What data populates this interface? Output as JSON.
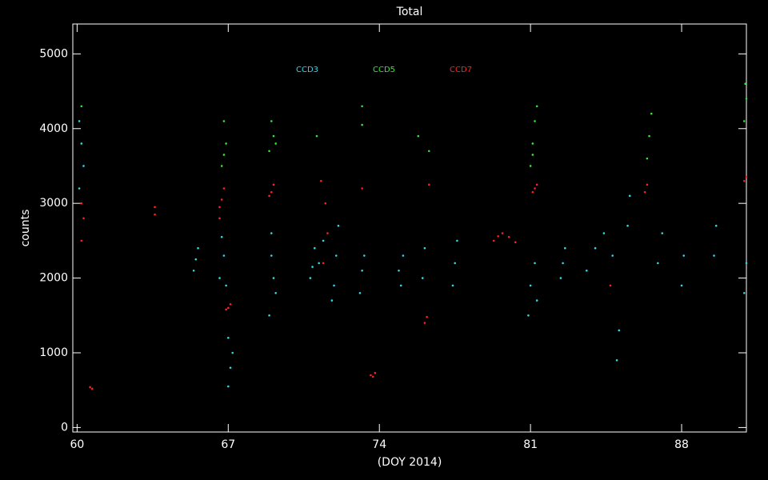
{
  "chart_data": {
    "type": "scatter",
    "title": "Total",
    "xlabel": "(DOY 2014)",
    "ylabel": "counts",
    "xlim": [
      59.8,
      91.0
    ],
    "ylim": [
      -60,
      5400
    ],
    "xticks": [
      60,
      67,
      74,
      81,
      88
    ],
    "yticks": [
      0,
      1000,
      2000,
      3000,
      4000,
      5000
    ],
    "series": [
      {
        "name": "CCD3",
        "color": "#33d6e6",
        "x": [
          60.1,
          60.2,
          60.1,
          60.3,
          65.4,
          65.6,
          65.5,
          66.6,
          66.8,
          66.7,
          66.9,
          67.0,
          67.1,
          67.0,
          67.2,
          68.9,
          69.1,
          69.0,
          69.2,
          69.0,
          70.8,
          71.0,
          71.2,
          71.4,
          70.9,
          71.8,
          72.0,
          72.1,
          71.9,
          73.1,
          73.3,
          73.2,
          75.0,
          75.1,
          74.9,
          76.0,
          76.1,
          77.4,
          77.6,
          77.5,
          80.9,
          81.0,
          81.2,
          81.3,
          82.4,
          82.6,
          82.5,
          83.6,
          84.0,
          84.4,
          84.8,
          85.0,
          85.1,
          85.5,
          85.6,
          86.9,
          87.1,
          88.0,
          88.1,
          89.5,
          89.6,
          90.9,
          91.0
        ],
        "values": [
          3200,
          3800,
          4100,
          3500,
          2100,
          2400,
          2250,
          2000,
          2300,
          2550,
          1900,
          1200,
          800,
          550,
          1000,
          1500,
          2000,
          2600,
          1800,
          2300,
          2000,
          2400,
          2200,
          2500,
          2150,
          1700,
          2300,
          2700,
          1900,
          1800,
          2300,
          2100,
          1900,
          2300,
          2100,
          2000,
          2400,
          1900,
          2500,
          2200,
          1500,
          1900,
          2200,
          1700,
          2000,
          2400,
          2200,
          2100,
          2400,
          2600,
          2300,
          900,
          1300,
          2700,
          3100,
          2200,
          2600,
          1900,
          2300,
          2300,
          2700,
          1800,
          2200
        ]
      },
      {
        "name": "CCD5",
        "color": "#33e633",
        "x": [
          60.2,
          66.7,
          66.9,
          66.8,
          66.8,
          68.9,
          69.1,
          69.0,
          69.2,
          71.1,
          73.2,
          73.2,
          75.8,
          76.3,
          81.0,
          81.1,
          81.2,
          81.3,
          81.1,
          86.4,
          86.5,
          86.6,
          90.9,
          91.0,
          90.95
        ],
        "values": [
          4300,
          3500,
          3800,
          4100,
          3650,
          3700,
          3900,
          4100,
          3800,
          3900,
          4050,
          4300,
          3900,
          3700,
          3500,
          3800,
          4100,
          4300,
          3650,
          3600,
          3900,
          4200,
          4100,
          4400,
          4600
        ]
      },
      {
        "name": "CCD7",
        "color": "#ff2020",
        "x": [
          60.2,
          60.3,
          60.2,
          60.6,
          60.7,
          63.6,
          63.6,
          66.6,
          66.7,
          66.8,
          66.6,
          67.0,
          67.1,
          66.9,
          68.9,
          69.1,
          69.0,
          71.4,
          71.6,
          71.5,
          71.3,
          73.2,
          73.6,
          73.8,
          73.7,
          76.1,
          76.2,
          76.3,
          79.3,
          79.7,
          80.0,
          80.3,
          79.5,
          81.1,
          81.3,
          81.2,
          84.7,
          86.3,
          86.4,
          90.9,
          91.0
        ],
        "values": [
          2500,
          2800,
          3000,
          540,
          520,
          2850,
          2950,
          2800,
          3050,
          3200,
          2950,
          1600,
          1650,
          1580,
          3100,
          3250,
          3150,
          2200,
          2600,
          3000,
          3300,
          3200,
          700,
          730,
          680,
          1400,
          1480,
          3250,
          2500,
          2600,
          2550,
          2480,
          2560,
          3150,
          3250,
          3200,
          1900,
          3150,
          3250,
          3300,
          3350
        ]
      }
    ]
  }
}
